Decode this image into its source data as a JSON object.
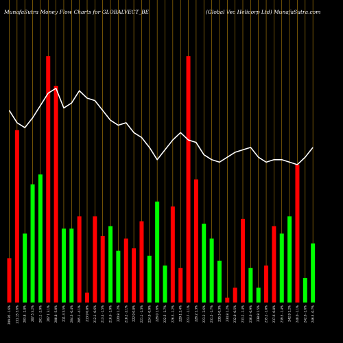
{
  "chart_data": {
    "type": "bar",
    "title_left": "MunafaSutra  Money Flow  Charts for GLOBALVECT_BE",
    "title_right": "(Global Vec Helicorp Ltd) MunafaSutra.com",
    "categories": [
      "209.95 -1.6%",
      "211.15 3.6%",
      "203.8 -1.8%",
      "207.5 3.2%",
      "201.1 -2.9%",
      "207.1 3.1%",
      "200.8 -5.0%",
      "211.4 3.5%",
      "204.3 -0.4%",
      "205.1 -4.1%",
      "213.9 0.8%",
      "212.1 -0.6%",
      "213.4 -1.5%",
      "216.6 -1.9%",
      "220.8 1.2%",
      "218.2 -2.1%",
      "222.9 0.8%",
      "221.1 -1.3%",
      "224.0 -0.9%",
      "226.0 1.6%",
      "222.5 -1.7%",
      "226.3 -1.2%",
      "229.1 2.4%",
      "223.7 -1.1%",
      "226.2 1.3%",
      "223.2 -3.6%",
      "231.5 -1.7%",
      "235.5 0.3%",
      "234.8 1.2%",
      "232.0 -0.5%",
      "233.2 -1.4%",
      "236.6 -0.9%",
      "238.8 1.5%",
      "235.2 -1.0%",
      "237.6 -0.8%",
      "239.5 -1.4%",
      "242.9 1.2%",
      "240.0 -1.1%",
      "242.6 -1.6%",
      "246.5 -0.7%"
    ],
    "series": [
      {
        "values": [
          18,
          70,
          28,
          48,
          52,
          100,
          88,
          30,
          30,
          35,
          4,
          35,
          27,
          31,
          21,
          26,
          22,
          33,
          19,
          41,
          15,
          39,
          14,
          100,
          50,
          32,
          26,
          17,
          2,
          6,
          34,
          14,
          6,
          15,
          31,
          28,
          35,
          56,
          10,
          24
        ],
        "colors": [
          "red",
          "red",
          "green",
          "green",
          "green",
          "red",
          "red",
          "green",
          "green",
          "red",
          "red",
          "red",
          "red",
          "green",
          "green",
          "red",
          "red",
          "red",
          "green",
          "green",
          "green",
          "red",
          "red",
          "red",
          "red",
          "green",
          "green",
          "green",
          "red",
          "red",
          "red",
          "green",
          "green",
          "red",
          "red",
          "green",
          "green",
          "red",
          "green",
          "green"
        ]
      }
    ],
    "line": [
      78,
      73,
      71,
      75,
      80,
      85,
      87,
      79,
      81,
      86,
      83,
      82,
      78,
      74,
      72,
      73,
      69,
      67,
      63,
      58,
      62,
      66,
      69,
      66,
      65,
      60,
      58,
      57,
      59,
      61,
      62,
      63,
      59,
      57,
      58,
      58,
      57,
      56,
      59,
      63
    ],
    "ylim": [
      0,
      100
    ],
    "colors": {
      "background": "#000000",
      "grid": "#b8860b",
      "up": "#00ff00",
      "down": "#ff0000",
      "line": "#ffffff"
    }
  }
}
